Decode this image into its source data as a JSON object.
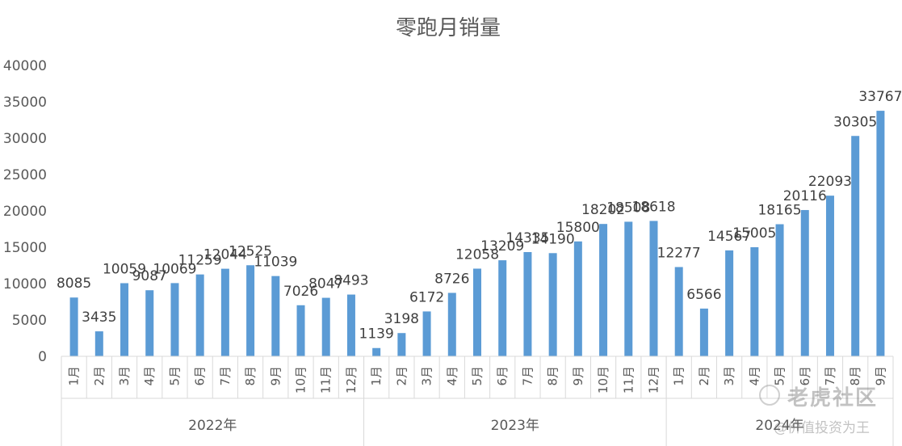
{
  "chart_data": {
    "type": "bar",
    "title": "零跑月销量",
    "ylim": [
      0,
      40000
    ],
    "yticks": [
      0,
      5000,
      10000,
      15000,
      20000,
      25000,
      30000,
      35000,
      40000
    ],
    "bar_color": "#5B9BD5",
    "groups": [
      {
        "label": "2022年",
        "categories": [
          "1月",
          "2月",
          "3月",
          "4月",
          "5月",
          "6月",
          "7月",
          "8月",
          "9月",
          "10月",
          "11月",
          "12月"
        ],
        "values": [
          8085,
          3435,
          10059,
          9087,
          10069,
          11259,
          12044,
          12525,
          11039,
          7026,
          8047,
          8493
        ]
      },
      {
        "label": "2023年",
        "categories": [
          "1月",
          "2月",
          "3月",
          "4月",
          "5月",
          "6月",
          "7月",
          "8月",
          "9月",
          "10月",
          "11月",
          "12月"
        ],
        "values": [
          1139,
          3198,
          6172,
          8726,
          12058,
          13209,
          14335,
          14190,
          15800,
          18202,
          18508,
          18618
        ]
      },
      {
        "label": "2024年",
        "categories": [
          "1月",
          "2月",
          "3月",
          "4月",
          "5月",
          "6月",
          "7月",
          "8月",
          "9月"
        ],
        "values": [
          12277,
          6566,
          14567,
          15005,
          18165,
          20116,
          22093,
          30305,
          33767
        ]
      }
    ]
  },
  "watermark": {
    "top": "老虎社区",
    "bottom": "@价值投资为王"
  }
}
